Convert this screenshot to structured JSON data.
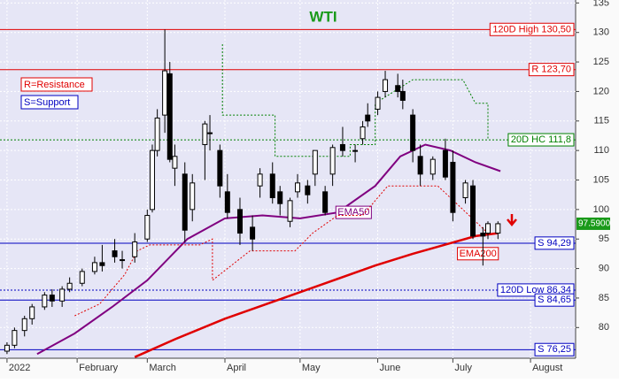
{
  "chart_data": {
    "type": "candlestick",
    "title": "WTI",
    "annotations": [
      "R=Resistance",
      "S=Support"
    ],
    "xlim": [
      0.2,
      230
    ],
    "xticks": [
      {
        "value": 3,
        "label": "2022"
      },
      {
        "value": 31,
        "label": "February"
      },
      {
        "value": 59,
        "label": "March"
      },
      {
        "value": 90,
        "label": "April"
      },
      {
        "value": 120,
        "label": "May"
      },
      {
        "value": 151,
        "label": "June"
      },
      {
        "value": 181,
        "label": "July"
      },
      {
        "value": 212,
        "label": "August"
      }
    ],
    "ylim": [
      74.8,
      135.5
    ],
    "yticks": [
      80,
      85,
      90,
      95,
      100,
      105,
      110,
      115,
      120,
      125,
      130,
      135
    ],
    "grid": true,
    "x": [
      3,
      6,
      10,
      13,
      18,
      21,
      25,
      28,
      33,
      38,
      41,
      46,
      49,
      54,
      59,
      61,
      63,
      66,
      68,
      70,
      74,
      77,
      82,
      84,
      88,
      91,
      96,
      101,
      104,
      109,
      112,
      116,
      119,
      123,
      126,
      130,
      133,
      137,
      142,
      145,
      147,
      151,
      154,
      159,
      161,
      165,
      168,
      173,
      178,
      181,
      186,
      189,
      193,
      195,
      199
    ],
    "open": [
      76,
      77,
      79.5,
      81.5,
      83.5,
      85.5,
      84.5,
      86.5,
      87.5,
      89.5,
      91,
      93,
      91.5,
      92,
      95,
      100,
      110,
      116,
      123,
      107,
      106,
      100,
      111,
      113,
      110,
      103,
      100,
      97,
      104,
      106,
      103,
      98,
      103,
      104,
      106,
      103,
      106,
      111,
      110,
      112,
      116,
      117,
      120,
      121,
      120,
      116,
      109,
      106,
      110,
      108,
      102,
      104,
      96,
      96,
      96
    ],
    "high": [
      77.5,
      80,
      82,
      84,
      86,
      86.5,
      87,
      88.5,
      90,
      92,
      94,
      95,
      93,
      96,
      100,
      111,
      117,
      130.5,
      125,
      111,
      108,
      106,
      115,
      116,
      111,
      106,
      102,
      99,
      107,
      108,
      104,
      102,
      106,
      105,
      110,
      104,
      111,
      114,
      111,
      115,
      118,
      120,
      123.5,
      123,
      122,
      117,
      111,
      109,
      112,
      110,
      105,
      105,
      97,
      98,
      98
    ],
    "low": [
      75.5,
      76.5,
      78.5,
      80.5,
      83,
      83.5,
      83.5,
      86,
      87,
      89,
      89.5,
      91,
      90,
      91,
      94.5,
      99.5,
      109,
      113,
      108,
      104,
      94.5,
      98,
      105,
      110,
      102,
      98.5,
      94,
      93,
      102,
      101,
      99,
      97,
      102,
      101,
      104,
      99,
      104,
      109,
      108,
      111,
      114,
      116,
      119,
      119,
      117,
      108,
      104,
      105,
      105,
      98,
      101,
      95,
      90.5,
      95,
      95
    ],
    "close": [
      77,
      79.5,
      81.5,
      83.5,
      85.5,
      84.5,
      86.5,
      87.5,
      89.5,
      91,
      90.5,
      92,
      91.5,
      94.5,
      99,
      110,
      115.5,
      123.5,
      108.5,
      109,
      96.5,
      104.5,
      114.5,
      113,
      104,
      99.5,
      96,
      95,
      106,
      102,
      101,
      101.5,
      104.5,
      102.5,
      110,
      99.5,
      110.5,
      110,
      110,
      114,
      115,
      119,
      122,
      120,
      118.5,
      110,
      106,
      108.5,
      105.5,
      99.5,
      104.5,
      95.5,
      95.5,
      97.6,
      97.59
    ],
    "lines": [
      {
        "name": "EMA50",
        "color": "#800080",
        "width": 2,
        "x": [
          15,
          30,
          45,
          59,
          75,
          90,
          105,
          120,
          135,
          150,
          160,
          170,
          180,
          190,
          200
        ],
        "values": [
          75.5,
          79,
          83.5,
          88,
          95,
          98.5,
          99,
          98.5,
          99.5,
          104,
          109,
          111,
          110,
          108,
          106.5
        ]
      },
      {
        "name": "EMA200",
        "color": "#e00000",
        "width": 2.5,
        "x": [
          54,
          70,
          90,
          110,
          130,
          150,
          165,
          180,
          190,
          199
        ],
        "values": [
          75,
          78,
          81.5,
          84.5,
          87.5,
          90.5,
          92.5,
          94.3,
          95.5,
          96
        ]
      },
      {
        "color": "#008000",
        "width": 1,
        "dashed": true,
        "x": [
          89,
          89,
          110,
          110,
          140,
          140,
          150,
          150,
          165,
          185,
          190,
          195,
          195
        ],
        "values": [
          128,
          116,
          116,
          109,
          109,
          111,
          111,
          118,
          122,
          122,
          118,
          118,
          111.8
        ]
      },
      {
        "color": "#e00000",
        "width": 1,
        "dashed": true,
        "x": [
          30,
          40,
          50,
          55,
          60,
          80,
          85,
          85,
          100,
          118,
          125,
          135,
          145,
          155,
          175,
          185,
          195
        ],
        "values": [
          82,
          84,
          89,
          93,
          94,
          94,
          95,
          88,
          93,
          93,
          96,
          99,
          99,
          104,
          104,
          100,
          96
        ]
      }
    ],
    "levels": [
      {
        "value": 130.5,
        "label": "120D High 130,50",
        "color": "#e00000",
        "dashed": false
      },
      {
        "value": 123.7,
        "label": "R 123,70",
        "color": "#e00000",
        "dashed": false
      },
      {
        "value": 111.8,
        "label": "20D HC 111,8",
        "color": "#008000",
        "dashed": true
      },
      {
        "value": 94.29,
        "label": "S 94,29",
        "color": "#0000c0",
        "dashed": false
      },
      {
        "value": 86.34,
        "label": "120D Low 86,34",
        "color": "#0000c0",
        "dashed": true
      },
      {
        "value": 84.65,
        "label": "S 84,65",
        "color": "#0000c0",
        "dashed": false
      },
      {
        "value": 76.25,
        "label": "S 76,25",
        "color": "#0000c0",
        "dashed": false
      }
    ],
    "last_price": {
      "value": 97.59,
      "label": "97.5900"
    }
  }
}
